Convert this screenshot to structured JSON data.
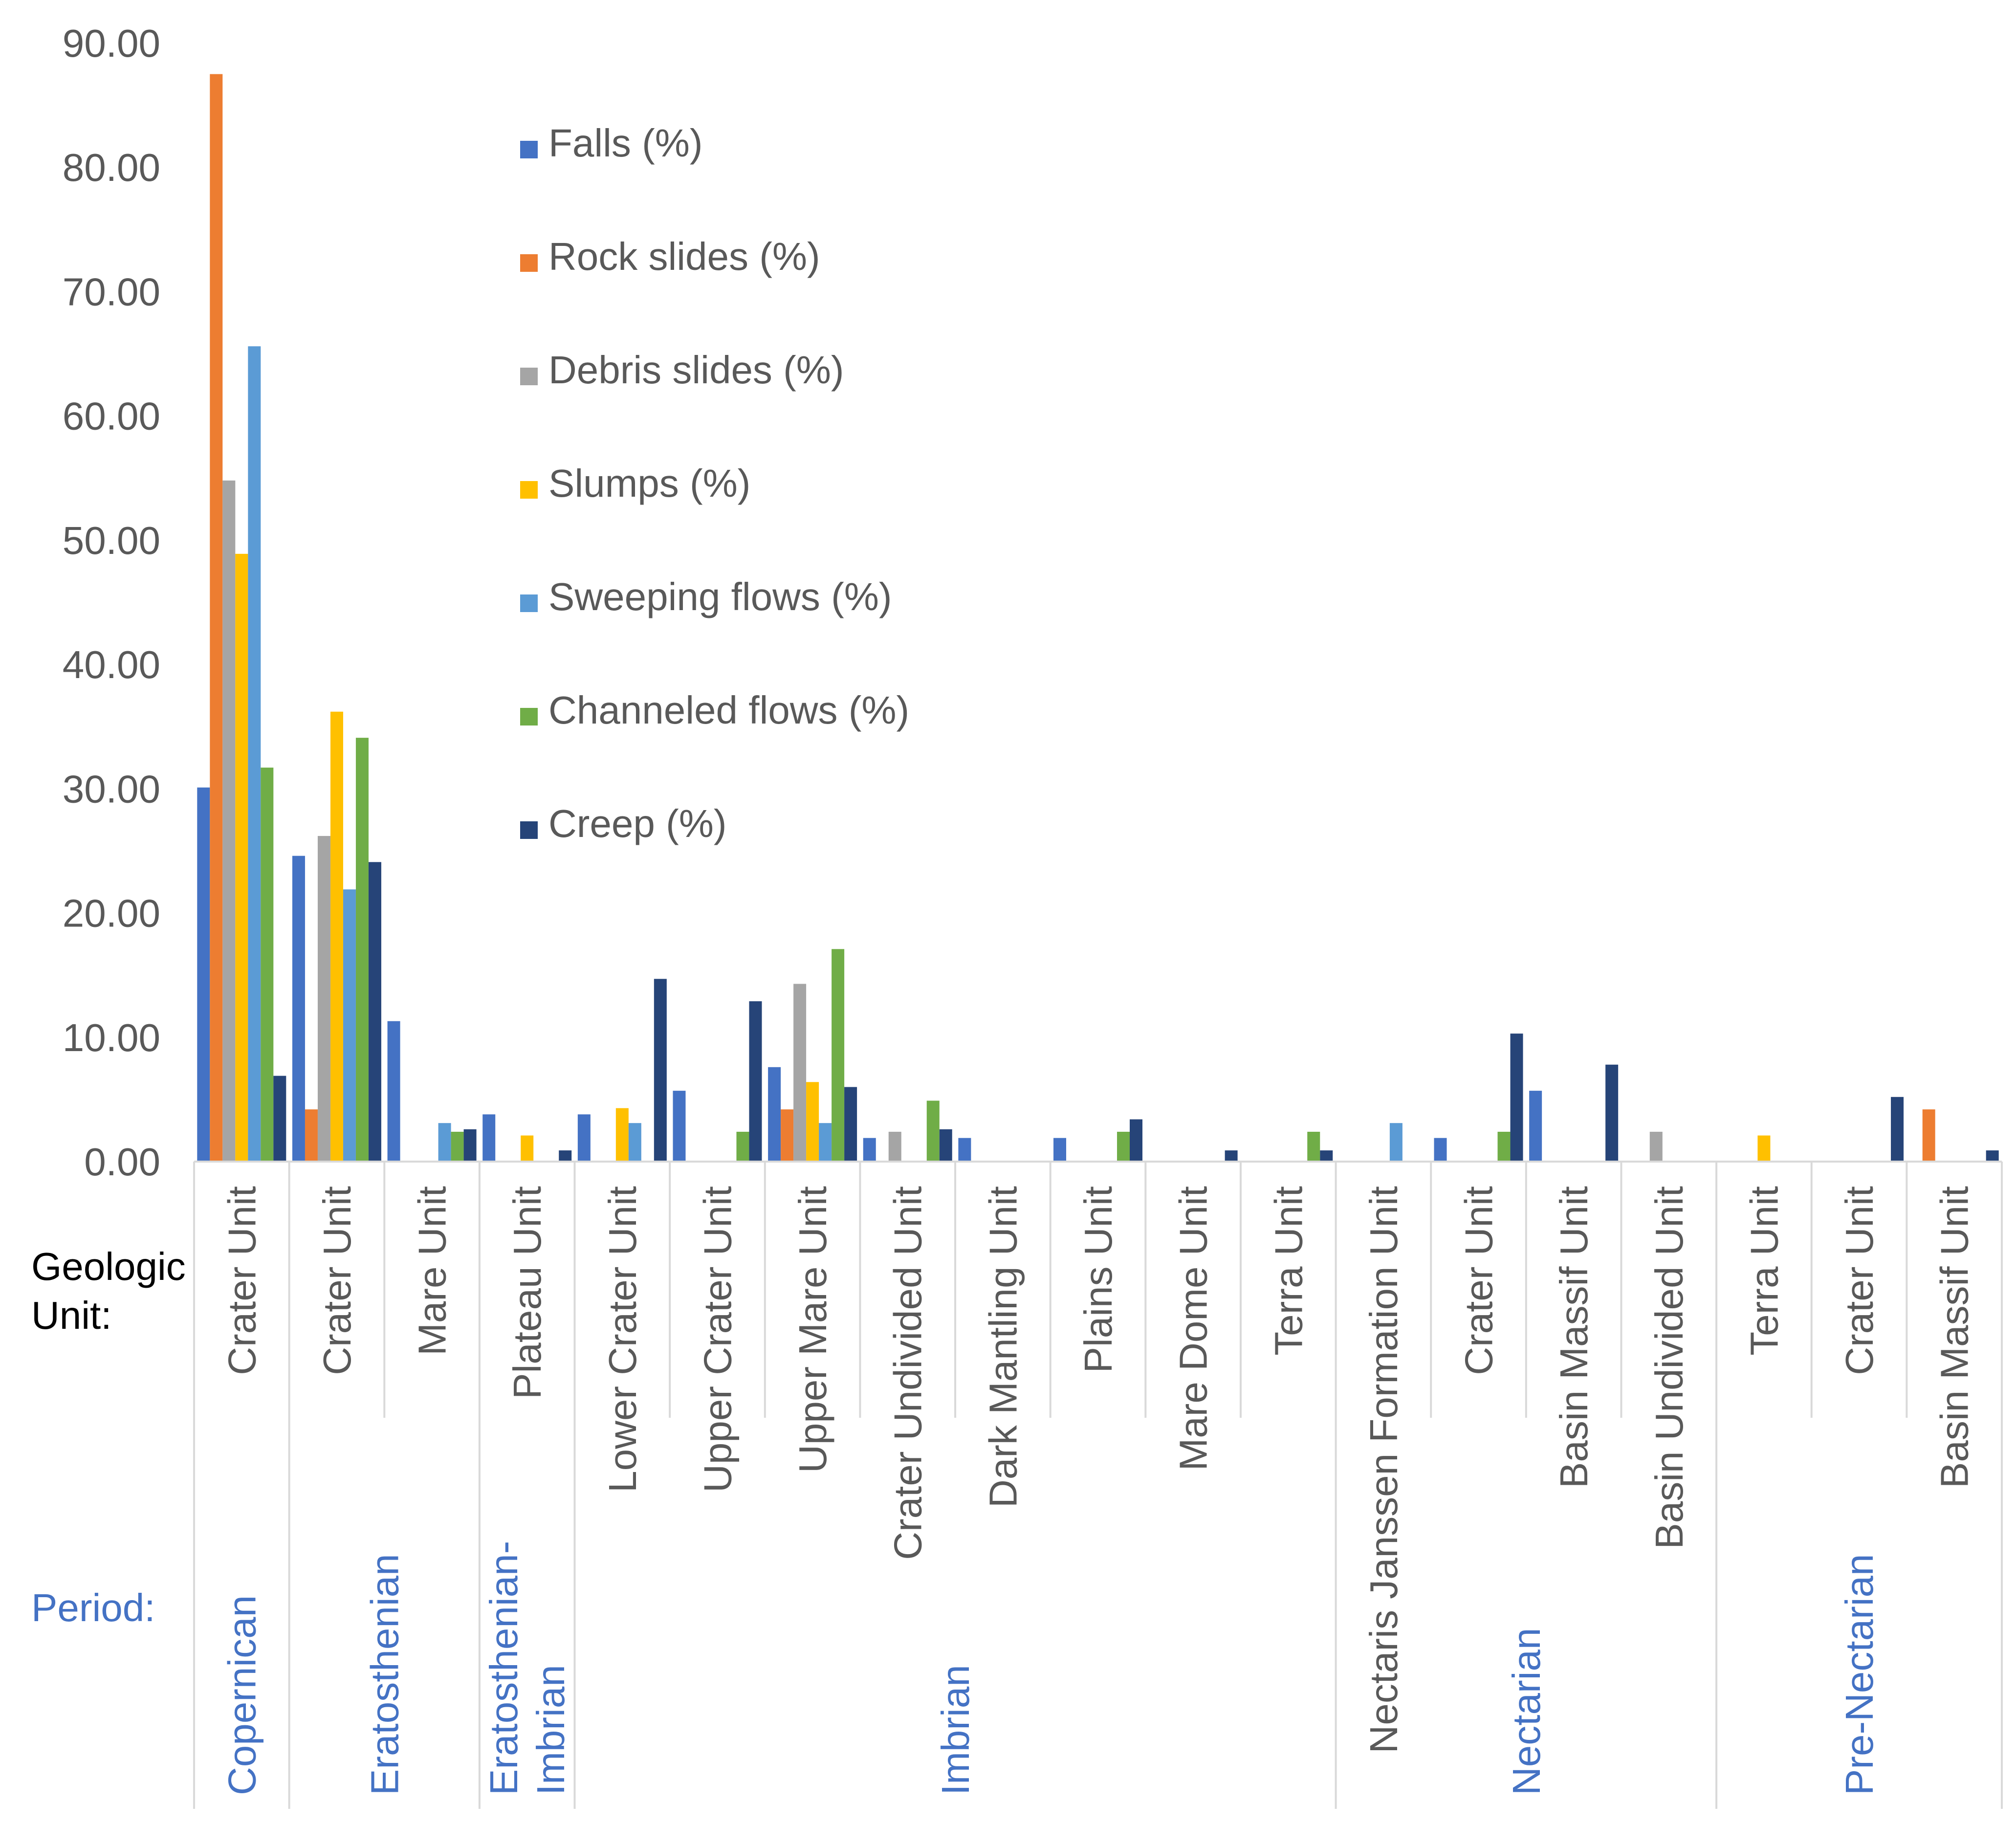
{
  "chart_data": {
    "type": "bar",
    "title": "",
    "xlabel": "Geologic Unit:",
    "ylabel": "",
    "ylim": [
      0,
      90
    ],
    "yticks": [
      "0.00",
      "10.00",
      "20.00",
      "30.00",
      "40.00",
      "50.00",
      "60.00",
      "70.00",
      "80.00",
      "90.00"
    ],
    "row_labels": {
      "unit": "Geologic\nUnit:",
      "period": "Period:"
    },
    "period_color": "#4472c4",
    "categories": [
      "Crater Unit",
      "Crater Unit",
      "Mare Unit",
      "Plateau Unit",
      "Lower Crater Unit",
      "Upper Crater Unit",
      "Upper Mare Unit",
      "Crater Undivided Unit",
      "Dark Mantling Unit",
      "Plains Unit",
      "Mare Dome Unit",
      "Terra Unit",
      "Nectaris Janssen Formation Unit",
      "Crater Unit",
      "Basin Massif Unit",
      "Basin Undivided Unit",
      "Terra Unit",
      "Crater Unit",
      "Basin Massif Unit"
    ],
    "periods": [
      {
        "name": "Copernican",
        "start": 0,
        "end": 0
      },
      {
        "name": "Eratosthenian",
        "start": 1,
        "end": 2
      },
      {
        "name": "Eratosthenian-\nImbrian",
        "start": 3,
        "end": 3
      },
      {
        "name": "Imbrian",
        "start": 4,
        "end": 11
      },
      {
        "name": "Nectarian",
        "start": 12,
        "end": 15
      },
      {
        "name": "Pre-Nectarian",
        "start": 16,
        "end": 18
      }
    ],
    "series": [
      {
        "name": "Falls (%)",
        "color": "#4472c4",
        "values": [
          30.1,
          24.6,
          11.3,
          3.8,
          3.8,
          5.7,
          7.6,
          1.9,
          1.9,
          1.9,
          0,
          0,
          0,
          1.9,
          5.7,
          0,
          0,
          0,
          0
        ]
      },
      {
        "name": "Rock slides (%)",
        "color": "#ed7d31",
        "values": [
          87.5,
          4.2,
          0,
          0,
          0,
          0,
          4.2,
          0,
          0,
          0,
          0,
          0,
          0,
          0,
          0,
          0,
          0,
          0,
          4.2
        ]
      },
      {
        "name": "Debris slides (%)",
        "color": "#a5a5a5",
        "values": [
          54.8,
          26.2,
          0,
          0,
          0,
          0,
          14.3,
          2.4,
          0,
          0,
          0,
          0,
          0,
          0,
          0,
          2.4,
          0,
          0,
          0
        ]
      },
      {
        "name": "Slumps (%)",
        "color": "#ffc000",
        "values": [
          48.9,
          36.2,
          0,
          2.1,
          4.3,
          0,
          6.4,
          0,
          0,
          0,
          0,
          0,
          0,
          0,
          0,
          0,
          2.1,
          0,
          0
        ]
      },
      {
        "name": "Sweeping flows (%)",
        "color": "#5b9bd5",
        "values": [
          65.6,
          21.9,
          3.1,
          0,
          3.1,
          0,
          3.1,
          0,
          0,
          0,
          0,
          0,
          3.1,
          0,
          0,
          0,
          0,
          0,
          0
        ]
      },
      {
        "name": "Channeled flows (%)",
        "color": "#70ad47",
        "values": [
          31.7,
          34.1,
          2.4,
          0,
          0,
          2.4,
          17.1,
          4.9,
          0,
          2.4,
          0,
          2.4,
          0,
          2.4,
          0,
          0,
          0,
          0,
          0
        ]
      },
      {
        "name": "Creep (%)",
        "color": "#264478",
        "values": [
          6.9,
          24.1,
          2.6,
          0.9,
          14.7,
          12.9,
          6.0,
          2.6,
          0,
          3.4,
          0.9,
          0.9,
          0,
          10.3,
          7.8,
          0,
          0,
          5.2,
          0.9
        ]
      }
    ],
    "legend_position": "top-left, inside plot",
    "grid": false
  }
}
